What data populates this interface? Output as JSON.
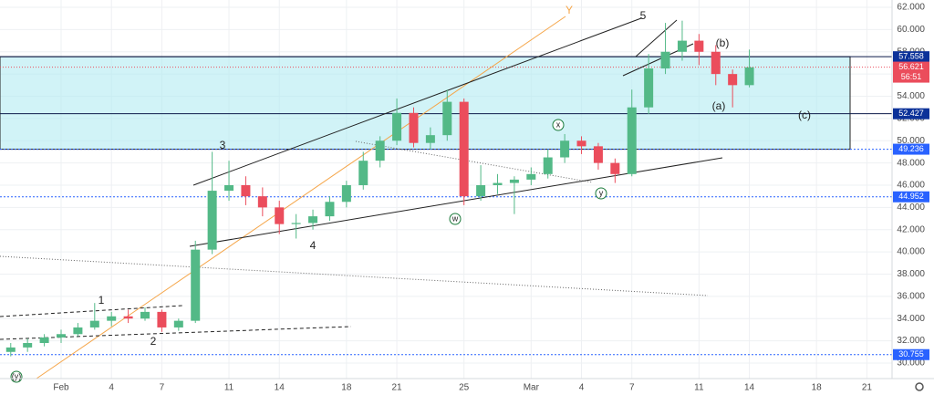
{
  "chart_data": {
    "type": "candlestick",
    "x": [
      -3,
      -2,
      -1,
      0,
      1,
      2,
      3,
      4,
      5,
      6,
      7,
      8,
      9,
      10,
      11,
      12,
      13,
      14,
      15,
      16,
      17,
      18,
      19,
      20,
      21,
      22,
      23,
      24,
      25,
      26,
      27,
      28,
      29,
      30,
      31,
      32,
      33,
      34,
      35,
      36,
      37,
      38,
      39,
      40,
      41
    ],
    "open": [
      31.0,
      31.4,
      31.8,
      32.3,
      32.6,
      33.2,
      33.8,
      34.2,
      34.0,
      34.6,
      33.2,
      33.8,
      40.2,
      45.5,
      46.0,
      45.0,
      44.0,
      42.5,
      42.6,
      43.2,
      44.5,
      46.0,
      48.2,
      50.0,
      52.5,
      49.8,
      50.5,
      53.5,
      45.0,
      46.0,
      46.2,
      46.5,
      47.0,
      48.5,
      50.0,
      49.5,
      48.0,
      47.0,
      53.0,
      56.5,
      58.0,
      59.0,
      58.0,
      56.0,
      55.0
    ],
    "high": [
      31.8,
      32.2,
      32.6,
      33.0,
      33.6,
      35.4,
      34.6,
      34.8,
      35.0,
      34.8,
      34.0,
      41.0,
      49.0,
      48.2,
      46.8,
      45.8,
      44.6,
      43.4,
      43.8,
      45.0,
      46.4,
      49.0,
      50.4,
      53.8,
      53.0,
      51.2,
      54.6,
      53.8,
      47.8,
      47.0,
      46.8,
      47.6,
      49.2,
      50.6,
      50.4,
      49.8,
      48.4,
      54.6,
      57.8,
      60.6,
      60.8,
      59.6,
      58.6,
      56.4,
      58.2
    ],
    "low": [
      30.6,
      31.0,
      31.5,
      31.8,
      32.4,
      33.0,
      33.3,
      33.6,
      33.8,
      32.8,
      32.9,
      33.6,
      39.8,
      44.6,
      44.2,
      43.2,
      41.6,
      41.2,
      42.0,
      42.8,
      44.0,
      45.6,
      47.6,
      49.6,
      49.4,
      49.2,
      50.0,
      44.2,
      44.6,
      45.2,
      43.4,
      46.0,
      46.6,
      48.0,
      48.8,
      47.4,
      46.2,
      46.8,
      52.4,
      56.0,
      57.2,
      56.8,
      55.0,
      53.0,
      54.8
    ],
    "close": [
      31.4,
      31.8,
      32.3,
      32.6,
      33.2,
      33.8,
      34.2,
      34.0,
      34.6,
      33.2,
      33.8,
      40.2,
      45.5,
      46.0,
      45.0,
      44.0,
      42.5,
      42.6,
      43.2,
      44.5,
      46.0,
      48.2,
      50.0,
      52.5,
      49.8,
      50.5,
      53.5,
      45.0,
      46.0,
      46.2,
      46.5,
      47.0,
      48.5,
      50.0,
      49.5,
      48.0,
      47.0,
      53.0,
      56.5,
      58.0,
      59.0,
      58.0,
      56.0,
      55.0,
      56.6
    ],
    "up_color": "#53b987",
    "down_color": "#eb4d5c",
    "xlim": [
      -3.64,
      49.5
    ],
    "xticks": [
      {
        "value": 0,
        "label": "Feb"
      },
      {
        "value": 3,
        "label": "4"
      },
      {
        "value": 6,
        "label": "7"
      },
      {
        "value": 10,
        "label": "11"
      },
      {
        "value": 13,
        "label": "14"
      },
      {
        "value": 17,
        "label": "18"
      },
      {
        "value": 20,
        "label": "21"
      },
      {
        "value": 24,
        "label": "25"
      },
      {
        "value": 28,
        "label": "Mar"
      },
      {
        "value": 31,
        "label": "4"
      },
      {
        "value": 34,
        "label": "7"
      },
      {
        "value": 38,
        "label": "11"
      },
      {
        "value": 41,
        "label": "14"
      },
      {
        "value": 45,
        "label": "18"
      },
      {
        "value": 48,
        "label": "21"
      }
    ],
    "ylim": [
      28.6,
      62.66
    ],
    "yticks": [
      {
        "value": 30,
        "label": "30.000"
      },
      {
        "value": 32,
        "label": "32.000"
      },
      {
        "value": 34,
        "label": "34.000"
      },
      {
        "value": 36,
        "label": "36.000"
      },
      {
        "value": 38,
        "label": "38.000"
      },
      {
        "value": 40,
        "label": "40.000"
      },
      {
        "value": 42,
        "label": "42.000"
      },
      {
        "value": 44,
        "label": "44.000"
      },
      {
        "value": 46,
        "label": "46.000"
      },
      {
        "value": 48,
        "label": "48.000"
      },
      {
        "value": 50,
        "label": "50.000"
      },
      {
        "value": 52,
        "label": "52.000"
      },
      {
        "value": 54,
        "label": "54.000"
      },
      {
        "value": 56,
        "label": "56.000"
      },
      {
        "value": 58,
        "label": "58.000"
      },
      {
        "value": 60,
        "label": "60.000"
      },
      {
        "value": 62,
        "label": "62.000"
      }
    ],
    "grid": true,
    "levels": [
      57.558,
      52.427,
      49.236,
      44.952,
      30.755
    ],
    "level_styles": [
      "solid",
      "solid",
      "dotted",
      "dotted",
      "dotted"
    ],
    "zone_color": "#b2ebf2",
    "last_price": 56.621,
    "countdown": "56:51",
    "annotations": [
      "Y",
      "5",
      "3",
      "4",
      "1",
      "2",
      "(b)",
      "(a)",
      "(c)",
      "(y)",
      "x",
      "w",
      "y"
    ]
  }
}
